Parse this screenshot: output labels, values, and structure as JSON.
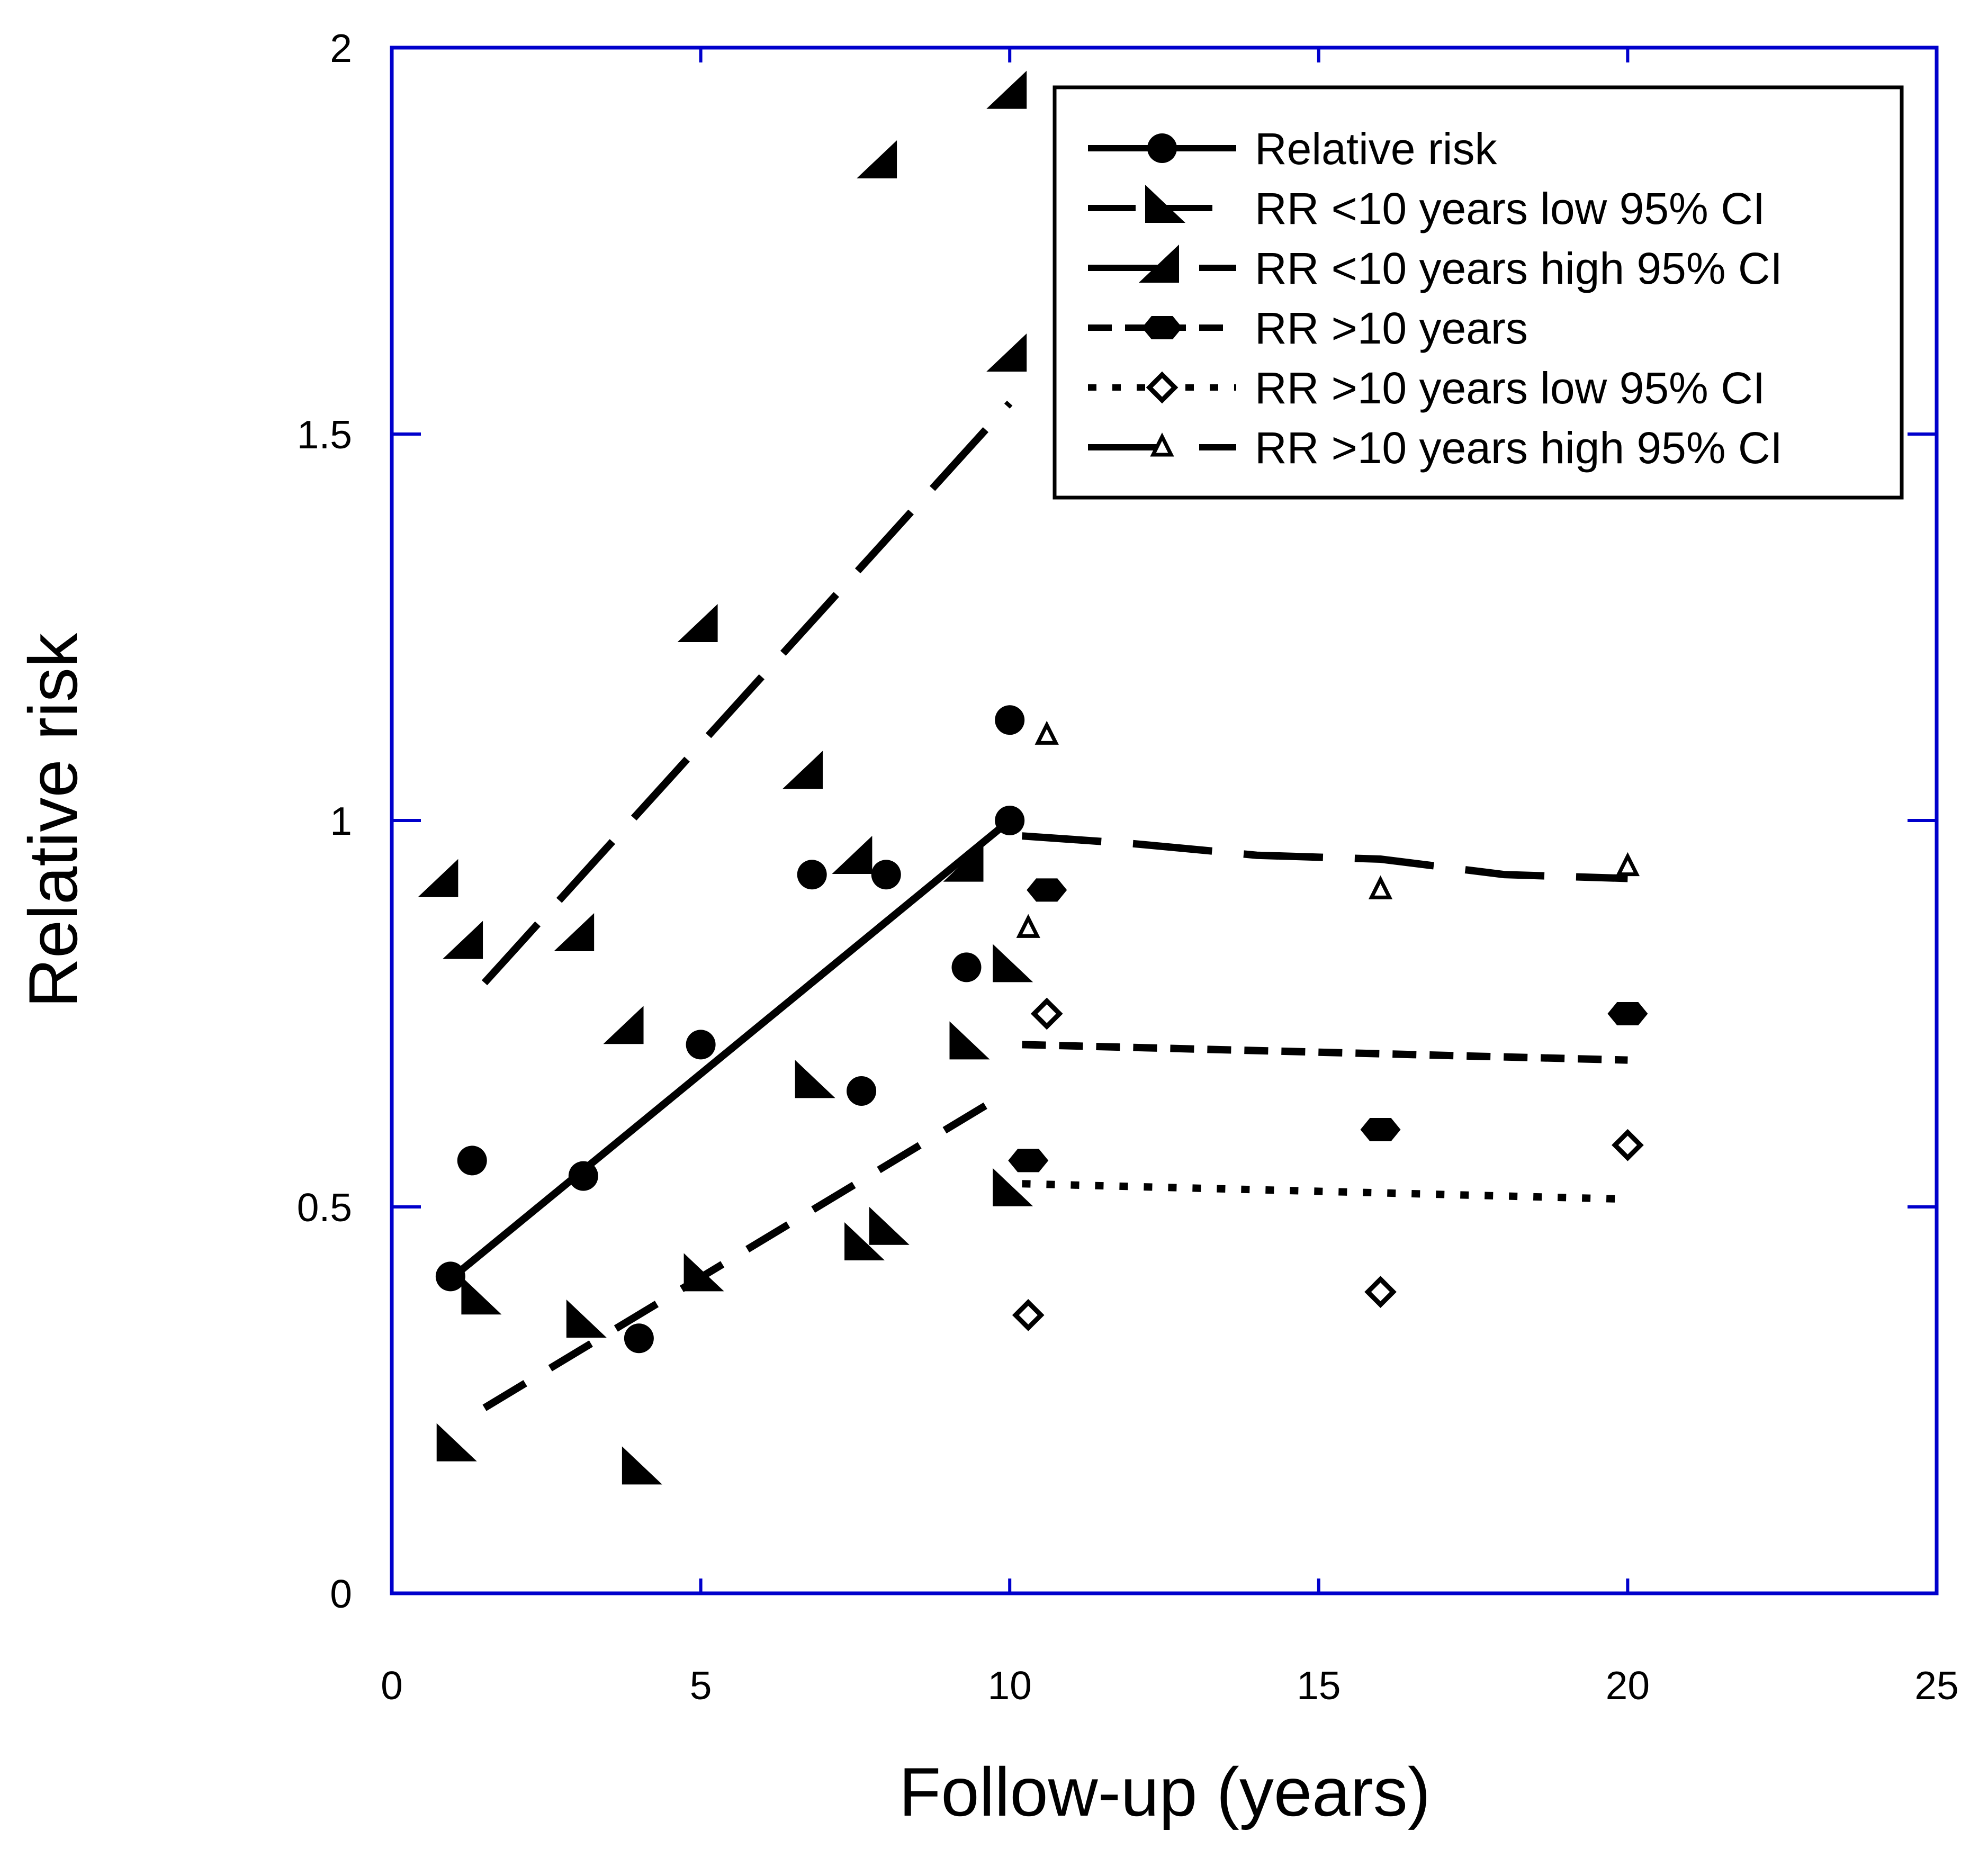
{
  "colors": {
    "frame": "#0000cc",
    "marks": "#000000",
    "background": "#ffffff"
  },
  "chart_data": {
    "type": "scatter",
    "title": "",
    "xlabel": "Follow-up (years)",
    "ylabel": "Relative risk",
    "xlim": [
      0,
      25
    ],
    "ylim": [
      0,
      2
    ],
    "xticks": [
      0,
      5,
      10,
      15,
      20,
      25
    ],
    "xtick_labels": [
      "0",
      "5",
      "10",
      "15",
      "20",
      "25"
    ],
    "yticks": [
      0,
      0.5,
      1,
      1.5,
      2
    ],
    "ytick_labels": [
      "0",
      "0.5",
      "1",
      "1.5",
      "2"
    ],
    "grid": false,
    "legend_position": "top-right",
    "series": [
      {
        "name": "Relative risk",
        "marker": "circle",
        "line": "solid",
        "points": [
          [
            0.95,
            0.41
          ],
          [
            1.3,
            0.56
          ],
          [
            3.1,
            0.54
          ],
          [
            4.0,
            0.33
          ],
          [
            5.0,
            0.71
          ],
          [
            6.8,
            0.93
          ],
          [
            7.6,
            0.65
          ],
          [
            8.0,
            0.93
          ],
          [
            9.3,
            0.81
          ],
          [
            10.0,
            1.0
          ],
          [
            10.0,
            1.13
          ]
        ],
        "fit": [
          [
            1.0,
            0.41
          ],
          [
            10.0,
            1.0
          ]
        ]
      },
      {
        "name": "RR <10 years low 95% CI",
        "marker": "triangle-low",
        "line": "dash",
        "points": [
          [
            1.0,
            0.19
          ],
          [
            1.4,
            0.38
          ],
          [
            3.1,
            0.35
          ],
          [
            4.0,
            0.16
          ],
          [
            5.0,
            0.41
          ],
          [
            6.8,
            0.66
          ],
          [
            7.6,
            0.45
          ],
          [
            8.0,
            0.47
          ],
          [
            9.3,
            0.71
          ],
          [
            10.0,
            0.52
          ],
          [
            10.0,
            0.81
          ]
        ],
        "fit": [
          [
            1.5,
            0.24
          ],
          [
            10.0,
            0.65
          ]
        ]
      },
      {
        "name": "RR <10 years high 95% CI",
        "marker": "triangle-high",
        "line": "long-dash",
        "points": [
          [
            0.8,
            0.92
          ],
          [
            1.2,
            0.84
          ],
          [
            3.0,
            0.85
          ],
          [
            3.8,
            0.73
          ],
          [
            5.0,
            1.25
          ],
          [
            6.7,
            1.06
          ],
          [
            7.5,
            0.95
          ],
          [
            7.9,
            1.85
          ],
          [
            9.3,
            0.94
          ],
          [
            10.0,
            1.6
          ],
          [
            10.0,
            1.94
          ]
        ],
        "fit": [
          [
            1.5,
            0.79
          ],
          [
            10.0,
            1.54
          ]
        ]
      },
      {
        "name": "RR >10 years",
        "marker": "hexagon",
        "line": "short-dash",
        "points": [
          [
            10.3,
            0.56
          ],
          [
            10.6,
            0.91
          ],
          [
            16.0,
            0.6
          ],
          [
            20.0,
            0.75
          ]
        ],
        "fit": [
          [
            10.2,
            0.71
          ],
          [
            20.0,
            0.69
          ]
        ]
      },
      {
        "name": "RR >10 years low 95% CI",
        "marker": "diamond",
        "line": "dot",
        "points": [
          [
            10.3,
            0.36
          ],
          [
            10.6,
            0.75
          ],
          [
            16.0,
            0.39
          ],
          [
            20.0,
            0.58
          ]
        ],
        "fit": [
          [
            10.2,
            0.53
          ],
          [
            20.0,
            0.51
          ]
        ]
      },
      {
        "name": "RR >10 years high 95% CI",
        "marker": "triangle-open",
        "line": "long-dash",
        "points": [
          [
            10.3,
            0.86
          ],
          [
            10.6,
            1.11
          ],
          [
            16.0,
            0.91
          ],
          [
            20.0,
            0.94
          ]
        ],
        "fit": [
          [
            10.2,
            0.98
          ],
          [
            12.0,
            0.97
          ],
          [
            14.0,
            0.955
          ],
          [
            16.0,
            0.95
          ],
          [
            18.0,
            0.93
          ],
          [
            20.0,
            0.925
          ]
        ]
      }
    ]
  }
}
